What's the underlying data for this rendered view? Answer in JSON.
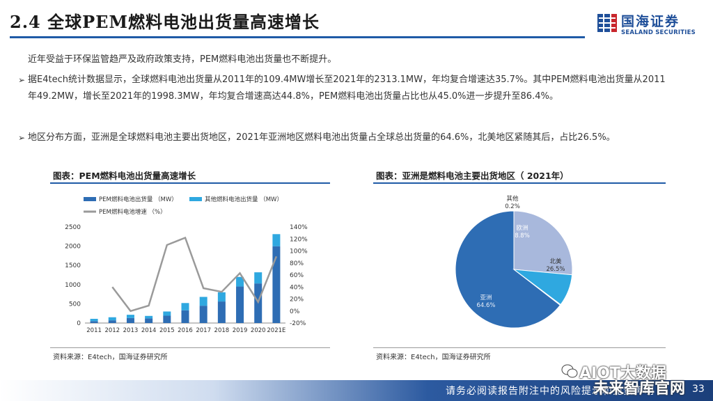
{
  "header": {
    "title": "2.4 全球PEM燃料电池出货量高速增长",
    "logo_cn": "国海证券",
    "logo_en": "SEALAND SECURITIES",
    "logo_icon": "sealand-logo-icon"
  },
  "intro": "近年受益于环保监管趋严及政府政策支持，PEM燃料电池出货量也不断提升。",
  "bullets": [
    "据E4tech统计数据显示，全球燃料电池出货量从2011年的109.4MW增长至2021年的2313.1MW，年均复合增速达35.7%。其中PEM燃料电池出货量从2011年49.2MW，增长至2021年的1998.3MW，年均复合增速高达44.8%，PEM燃料电池出货量占比也从45.0%进一步提升至86.4%。",
    "地区分布方面，亚洲是全球燃料电池主要出货地区，2021年亚洲地区燃料电池出货量占全球总出货量的64.6%，北美地区紧随其后，占比26.5%。"
  ],
  "left_panel": {
    "title": "图表：PEM燃料电池出货量高速增长",
    "source": "资料来源：E4tech，国海证券研究所"
  },
  "right_panel": {
    "title": "图表：亚洲是燃料电池主要出货地区（ 2021年）",
    "source": "资料来源：E4tech，国海证券研究所"
  },
  "footer": {
    "text": "请务必阅读报告附注中的风险提示和免责声明",
    "page": "33"
  },
  "watermark": {
    "line1": "AIOT大数据",
    "line2": "未来智库官网"
  },
  "colors": {
    "pem_bar": "#2e6db4",
    "other_bar": "#2fa8e0",
    "growth_line": "#9a9a9a",
    "asia": "#2e6db4",
    "north_america": "#a8b8dc",
    "europe": "#2fa8e0",
    "other": "#7ec8ee",
    "accent": "#1f5aa6"
  },
  "chart_data": [
    {
      "type": "bar",
      "stacked": true,
      "categories": [
        "2011",
        "2012",
        "2013",
        "2014",
        "2015",
        "2016",
        "2017",
        "2018",
        "2019",
        "2020",
        "2021E"
      ],
      "series": [
        {
          "name": "PEM燃料电池出货量 （MW）",
          "values": [
            49.2,
            70,
            130,
            120,
            190,
            330,
            450,
            560,
            950,
            1030,
            1998.3
          ]
        },
        {
          "name": "其他燃料电池出货量 （MW）",
          "values": [
            60.2,
            80,
            85,
            65,
            110,
            190,
            230,
            240,
            250,
            290,
            314.8
          ]
        },
        {
          "name": "PEM燃料电池增速 （%）",
          "axis": "right",
          "values": [
            null,
            40,
            0,
            9,
            110,
            122,
            38,
            32,
            63,
            15,
            91
          ]
        }
      ],
      "ylim": [
        0,
        2500
      ],
      "yticks": [
        "0",
        "500",
        "1000",
        "1500",
        "2000",
        "2500"
      ],
      "y2lim": [
        -20,
        140
      ],
      "y2ticks": [
        "-20%",
        "0%",
        "20%",
        "40%",
        "60%",
        "80%",
        "100%",
        "120%",
        "140%"
      ],
      "legend": "top-left"
    },
    {
      "type": "pie",
      "categories": [
        "亚洲",
        "北美",
        "欧洲",
        "其他"
      ],
      "values": [
        64.6,
        26.5,
        8.8,
        0.2
      ],
      "labels": [
        "64.6%",
        "26.5%",
        "8.8%",
        "0.2%"
      ]
    }
  ]
}
